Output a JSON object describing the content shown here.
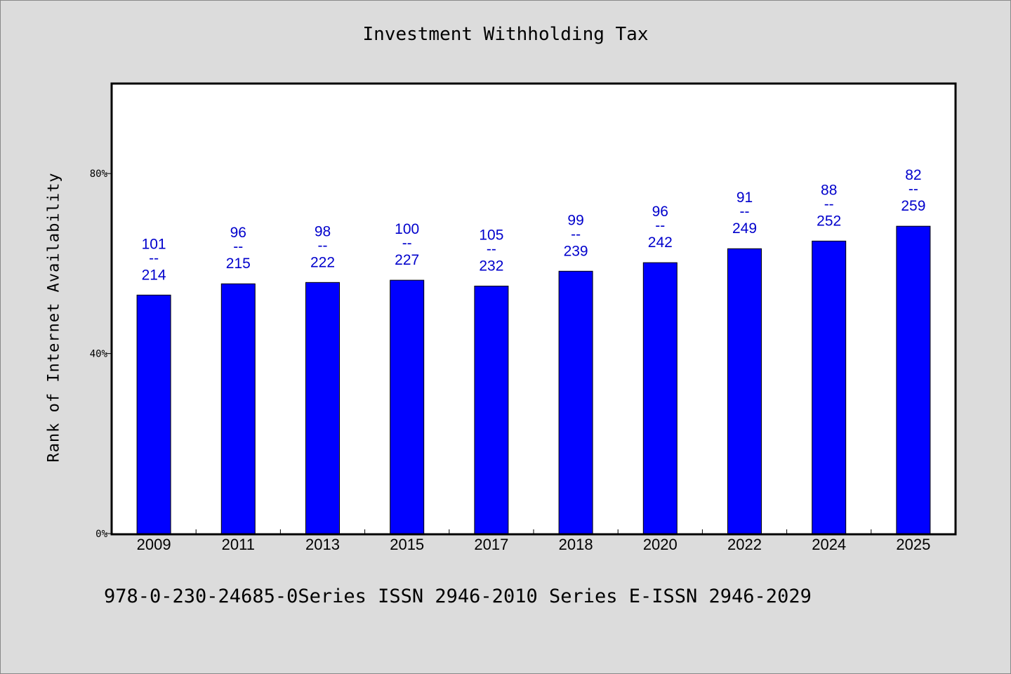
{
  "chart_data": {
    "type": "bar",
    "title": "Investment Withholding Tax",
    "ylabel": "Rank of Internet Availability",
    "xlabel": "",
    "categories": [
      "2009",
      "2011",
      "2013",
      "2015",
      "2017",
      "2018",
      "2020",
      "2022",
      "2024",
      "2025"
    ],
    "values": [
      53,
      55.5,
      55.8,
      56.3,
      55,
      58.3,
      60.2,
      63.3,
      65,
      68.3
    ],
    "labels": [
      {
        "top": "101",
        "mid": "--",
        "bottom": "214"
      },
      {
        "top": "96",
        "mid": "--",
        "bottom": "215"
      },
      {
        "top": "98",
        "mid": "--",
        "bottom": "222"
      },
      {
        "top": "100",
        "mid": "--",
        "bottom": "227"
      },
      {
        "top": "105",
        "mid": "--",
        "bottom": "232"
      },
      {
        "top": "99",
        "mid": "--",
        "bottom": "239"
      },
      {
        "top": "96",
        "mid": "--",
        "bottom": "242"
      },
      {
        "top": "91",
        "mid": "--",
        "bottom": "249"
      },
      {
        "top": "88",
        "mid": "--",
        "bottom": "252"
      },
      {
        "top": "82",
        "mid": "--",
        "bottom": "259"
      }
    ],
    "yticks": [
      {
        "value": 0,
        "label": "0%"
      },
      {
        "value": 40,
        "label": "40%"
      },
      {
        "value": 80,
        "label": "80%"
      }
    ],
    "ylim": [
      0,
      100
    ],
    "grid": false,
    "legend": "none",
    "bar_color": "#0000ff",
    "label_color": "#0000cc"
  },
  "footnote": "978-0-230-24685-0Series ISSN 2946-2010 Series E-ISSN 2946-2029"
}
